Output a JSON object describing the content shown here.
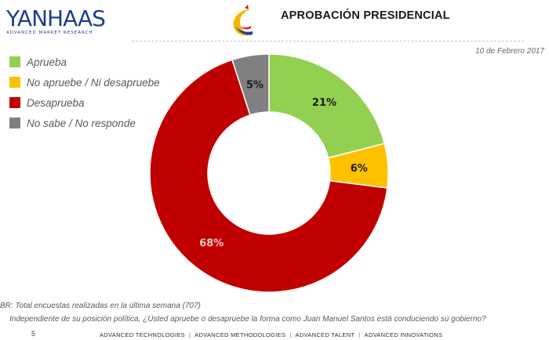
{
  "header": {
    "logo_text": "YANHAAS",
    "logo_subtitle": "ADVANCED MARKET RESEARCH",
    "title": "APROBACIÓN PRESIDENCIAL",
    "date": "10 de Febrero 2017"
  },
  "colors": {
    "aprueba": "#92d050",
    "no_aprueba_ni_desaprueba": "#ffc000",
    "desaprueba": "#c00000",
    "no_sabe": "#808080",
    "logo": "#1e3e8a"
  },
  "legend": [
    {
      "label": "Aprueba",
      "color": "#92d050"
    },
    {
      "label": "No apruebe / Ni desapruebe",
      "color": "#ffc000"
    },
    {
      "label": "Desaprueba",
      "color": "#c00000"
    },
    {
      "label": "No sabe /  No responde",
      "color": "#808080"
    }
  ],
  "chart_data": {
    "type": "pie",
    "variant": "donut",
    "title": "APROBACIÓN PRESIDENCIAL",
    "categories": [
      "Aprueba",
      "No apruebe / Ni desapruebe",
      "Desaprueba",
      "No sabe /  No responde"
    ],
    "values": [
      21,
      6,
      68,
      5
    ],
    "labels": [
      "21%",
      "6%",
      "68%",
      "5%"
    ],
    "colors": [
      "#92d050",
      "#ffc000",
      "#c00000",
      "#808080"
    ],
    "label_colors": [
      "#1a1a1a",
      "#1a1a1a",
      "#f2c7c7",
      "#1a1a1a"
    ],
    "legend_position": "top-left"
  },
  "footer": {
    "base_note": "BR: Total encuestas realizadas en la última semana (707)",
    "question": "Independiente de su posición política, ¿Usted apruebe o desapruebe la forma como Juan Manuel Santos está conduciendo su gobierno?",
    "page_number": "5",
    "links": [
      "ADVANCED TECHNOLOGIES",
      "ADVANCED METHODOLOGIES",
      "ADVANCED TALENT",
      "ADVANCED INNOVATIONS"
    ],
    "separator": "|"
  }
}
